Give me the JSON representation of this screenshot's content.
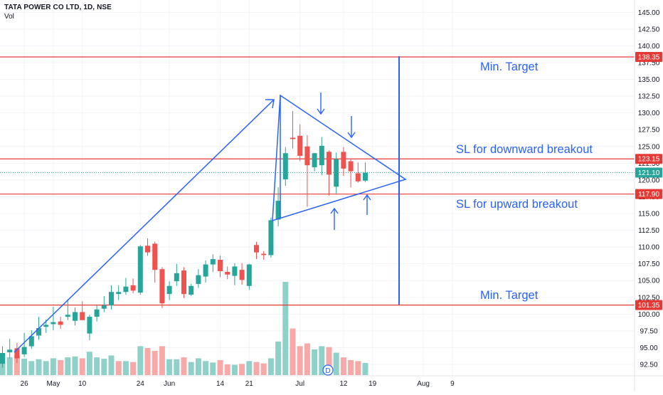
{
  "header": {
    "symbol_title": "TATA POWER CO LTD, 1D, NSE",
    "vol_label": "Vol"
  },
  "colors": {
    "up": "#26a69a",
    "down": "#ef5350",
    "up_vol": "#8fd1c9",
    "down_vol": "#f7a9a7",
    "drawing": "#2962ff",
    "level_line": "#e53935",
    "last_price": "#26a69a",
    "grid": "#f0f3fa"
  },
  "chart_data": {
    "type": "candlestick",
    "symbol": "TATA POWER CO LTD",
    "interval": "1D",
    "exchange": "NSE",
    "y_axis": {
      "range": [
        90.8,
        146.1
      ],
      "ticks": [
        "92.50",
        "95.00",
        "97.50",
        "100.00",
        "102.50",
        "105.00",
        "107.50",
        "110.00",
        "112.50",
        "115.00",
        "117.50",
        "120.00",
        "122.50",
        "125.00",
        "127.50",
        "130.00",
        "132.50",
        "135.00",
        "137.50",
        "140.00",
        "142.50",
        "145.00"
      ]
    },
    "x_axis": {
      "ticks": [
        {
          "label": "26",
          "index": 3
        },
        {
          "label": "May",
          "index": 7
        },
        {
          "label": "10",
          "index": 11
        },
        {
          "label": "24",
          "index": 19
        },
        {
          "label": "Jun",
          "index": 23
        },
        {
          "label": "14",
          "index": 30
        },
        {
          "label": "21",
          "index": 34
        },
        {
          "label": "Jul",
          "index": 41
        },
        {
          "label": "12",
          "index": 47
        },
        {
          "label": "19",
          "index": 51
        },
        {
          "label": "Aug",
          "index": 58
        },
        {
          "label": "9",
          "index": 62
        }
      ]
    },
    "candles": [
      {
        "o": 92.6,
        "h": 95.2,
        "l": 92.0,
        "c": 94.2
      },
      {
        "o": 94.3,
        "h": 96.3,
        "l": 93.4,
        "c": 94.7
      },
      {
        "o": 94.9,
        "h": 95.7,
        "l": 92.7,
        "c": 93.4
      },
      {
        "o": 94.0,
        "h": 97.2,
        "l": 93.6,
        "c": 95.1
      },
      {
        "o": 95.2,
        "h": 97.6,
        "l": 94.8,
        "c": 96.7
      },
      {
        "o": 96.8,
        "h": 99.6,
        "l": 96.2,
        "c": 97.9
      },
      {
        "o": 98.1,
        "h": 99.2,
        "l": 97.2,
        "c": 98.4
      },
      {
        "o": 98.5,
        "h": 101.1,
        "l": 97.6,
        "c": 98.8
      },
      {
        "o": 98.9,
        "h": 99.6,
        "l": 97.8,
        "c": 98.4
      },
      {
        "o": 99.6,
        "h": 102.2,
        "l": 99.1,
        "c": 99.9
      },
      {
        "o": 99.0,
        "h": 101.0,
        "l": 98.3,
        "c": 100.3
      },
      {
        "o": 100.3,
        "h": 101.9,
        "l": 99.6,
        "c": 99.1
      },
      {
        "o": 97.1,
        "h": 99.9,
        "l": 96.1,
        "c": 99.6
      },
      {
        "o": 99.6,
        "h": 101.3,
        "l": 98.9,
        "c": 100.7
      },
      {
        "o": 100.8,
        "h": 102.7,
        "l": 100.3,
        "c": 101.3
      },
      {
        "o": 101.3,
        "h": 104.3,
        "l": 100.7,
        "c": 103.3
      },
      {
        "o": 103.0,
        "h": 104.3,
        "l": 102.1,
        "c": 103.3
      },
      {
        "o": 103.3,
        "h": 105.4,
        "l": 102.9,
        "c": 104.1
      },
      {
        "o": 104.3,
        "h": 105.3,
        "l": 103.1,
        "c": 103.5
      },
      {
        "o": 103.2,
        "h": 110.3,
        "l": 102.9,
        "c": 110.1
      },
      {
        "o": 110.2,
        "h": 111.3,
        "l": 108.7,
        "c": 109.2
      },
      {
        "o": 110.5,
        "h": 110.8,
        "l": 104.7,
        "c": 106.6
      },
      {
        "o": 106.7,
        "h": 107.0,
        "l": 100.9,
        "c": 101.6
      },
      {
        "o": 103.0,
        "h": 104.9,
        "l": 102.1,
        "c": 104.2
      },
      {
        "o": 104.9,
        "h": 107.5,
        "l": 104.2,
        "c": 106.1
      },
      {
        "o": 106.5,
        "h": 107.0,
        "l": 102.4,
        "c": 103.0
      },
      {
        "o": 102.9,
        "h": 104.5,
        "l": 102.7,
        "c": 104.2
      },
      {
        "o": 104.5,
        "h": 106.7,
        "l": 103.9,
        "c": 105.8
      },
      {
        "o": 105.6,
        "h": 108.0,
        "l": 104.7,
        "c": 107.4
      },
      {
        "o": 107.4,
        "h": 108.9,
        "l": 106.3,
        "c": 108.2
      },
      {
        "o": 108.1,
        "h": 108.7,
        "l": 105.5,
        "c": 106.4
      },
      {
        "o": 106.3,
        "h": 107.1,
        "l": 105.2,
        "c": 105.9
      },
      {
        "o": 105.7,
        "h": 107.6,
        "l": 104.3,
        "c": 107.1
      },
      {
        "o": 106.6,
        "h": 107.6,
        "l": 104.4,
        "c": 105.1
      },
      {
        "o": 104.2,
        "h": 107.5,
        "l": 103.6,
        "c": 107.4
      },
      {
        "o": 110.3,
        "h": 110.8,
        "l": 108.2,
        "c": 109.2
      },
      {
        "o": 109.0,
        "h": 109.4,
        "l": 108.1,
        "c": 108.8
      },
      {
        "o": 108.8,
        "h": 114.4,
        "l": 108.4,
        "c": 114.0
      },
      {
        "o": 114.1,
        "h": 118.9,
        "l": 113.1,
        "c": 116.9
      },
      {
        "o": 120.1,
        "h": 124.9,
        "l": 119.1,
        "c": 124.0
      },
      {
        "o": 126.3,
        "h": 130.3,
        "l": 124.7,
        "c": 126.1
      },
      {
        "o": 126.6,
        "h": 128.3,
        "l": 122.8,
        "c": 123.6
      },
      {
        "o": 125.0,
        "h": 126.7,
        "l": 116.0,
        "c": 122.2
      },
      {
        "o": 121.9,
        "h": 123.6,
        "l": 121.3,
        "c": 124.0
      },
      {
        "o": 122.2,
        "h": 126.4,
        "l": 120.7,
        "c": 125.1
      },
      {
        "o": 124.2,
        "h": 124.4,
        "l": 117.7,
        "c": 120.8
      },
      {
        "o": 119.0,
        "h": 124.1,
        "l": 118.0,
        "c": 123.1
      },
      {
        "o": 124.2,
        "h": 124.9,
        "l": 120.6,
        "c": 121.7
      },
      {
        "o": 122.8,
        "h": 123.2,
        "l": 118.9,
        "c": 121.3
      },
      {
        "o": 121.0,
        "h": 122.6,
        "l": 119.6,
        "c": 119.8
      },
      {
        "o": 119.9,
        "h": 122.6,
        "l": 119.7,
        "c": 121.1
      }
    ],
    "volume": [
      {
        "v": 0.45,
        "up": true
      },
      {
        "v": 0.38,
        "up": true
      },
      {
        "v": 0.42,
        "up": false
      },
      {
        "v": 0.35,
        "up": true
      },
      {
        "v": 0.3,
        "up": true
      },
      {
        "v": 0.34,
        "up": true
      },
      {
        "v": 0.3,
        "up": true
      },
      {
        "v": 0.36,
        "up": true
      },
      {
        "v": 0.32,
        "up": false
      },
      {
        "v": 0.38,
        "up": true
      },
      {
        "v": 0.4,
        "up": true
      },
      {
        "v": 0.36,
        "up": false
      },
      {
        "v": 0.5,
        "up": true
      },
      {
        "v": 0.38,
        "up": true
      },
      {
        "v": 0.35,
        "up": true
      },
      {
        "v": 0.42,
        "up": true
      },
      {
        "v": 0.3,
        "up": false
      },
      {
        "v": 0.3,
        "up": true
      },
      {
        "v": 0.28,
        "up": false
      },
      {
        "v": 0.62,
        "up": true
      },
      {
        "v": 0.58,
        "up": false
      },
      {
        "v": 0.52,
        "up": false
      },
      {
        "v": 0.62,
        "up": false
      },
      {
        "v": 0.34,
        "up": true
      },
      {
        "v": 0.34,
        "up": true
      },
      {
        "v": 0.38,
        "up": false
      },
      {
        "v": 0.28,
        "up": true
      },
      {
        "v": 0.36,
        "up": true
      },
      {
        "v": 0.3,
        "up": true
      },
      {
        "v": 0.27,
        "up": true
      },
      {
        "v": 0.32,
        "up": false
      },
      {
        "v": 0.23,
        "up": false
      },
      {
        "v": 0.22,
        "up": true
      },
      {
        "v": 0.24,
        "up": false
      },
      {
        "v": 0.3,
        "up": true
      },
      {
        "v": 0.28,
        "up": false
      },
      {
        "v": 0.25,
        "up": false
      },
      {
        "v": 0.36,
        "up": true
      },
      {
        "v": 0.72,
        "up": true
      },
      {
        "v": 2.0,
        "up": true
      },
      {
        "v": 1.0,
        "up": false
      },
      {
        "v": 0.62,
        "up": false
      },
      {
        "v": 0.68,
        "up": false
      },
      {
        "v": 0.55,
        "up": true
      },
      {
        "v": 0.62,
        "up": true
      },
      {
        "v": 0.6,
        "up": false
      },
      {
        "v": 0.48,
        "up": true
      },
      {
        "v": 0.38,
        "up": false
      },
      {
        "v": 0.32,
        "up": false
      },
      {
        "v": 0.3,
        "up": false
      },
      {
        "v": 0.26,
        "up": true
      }
    ],
    "horizontal_levels": [
      {
        "value": 138.35,
        "label": "138.35"
      },
      {
        "value": 123.15,
        "label": "123.15"
      },
      {
        "value": 117.9,
        "label": "117.90"
      },
      {
        "value": 101.35,
        "label": "101.35"
      }
    ],
    "last_price": {
      "value": 121.1,
      "label": "121.10"
    },
    "annotations": [
      {
        "text": "Min. Target"
      },
      {
        "text": "SL for downward breakout"
      },
      {
        "text": "SL for upward breakout"
      },
      {
        "text": "Min. Target"
      }
    ],
    "dividend_marker": "D"
  }
}
